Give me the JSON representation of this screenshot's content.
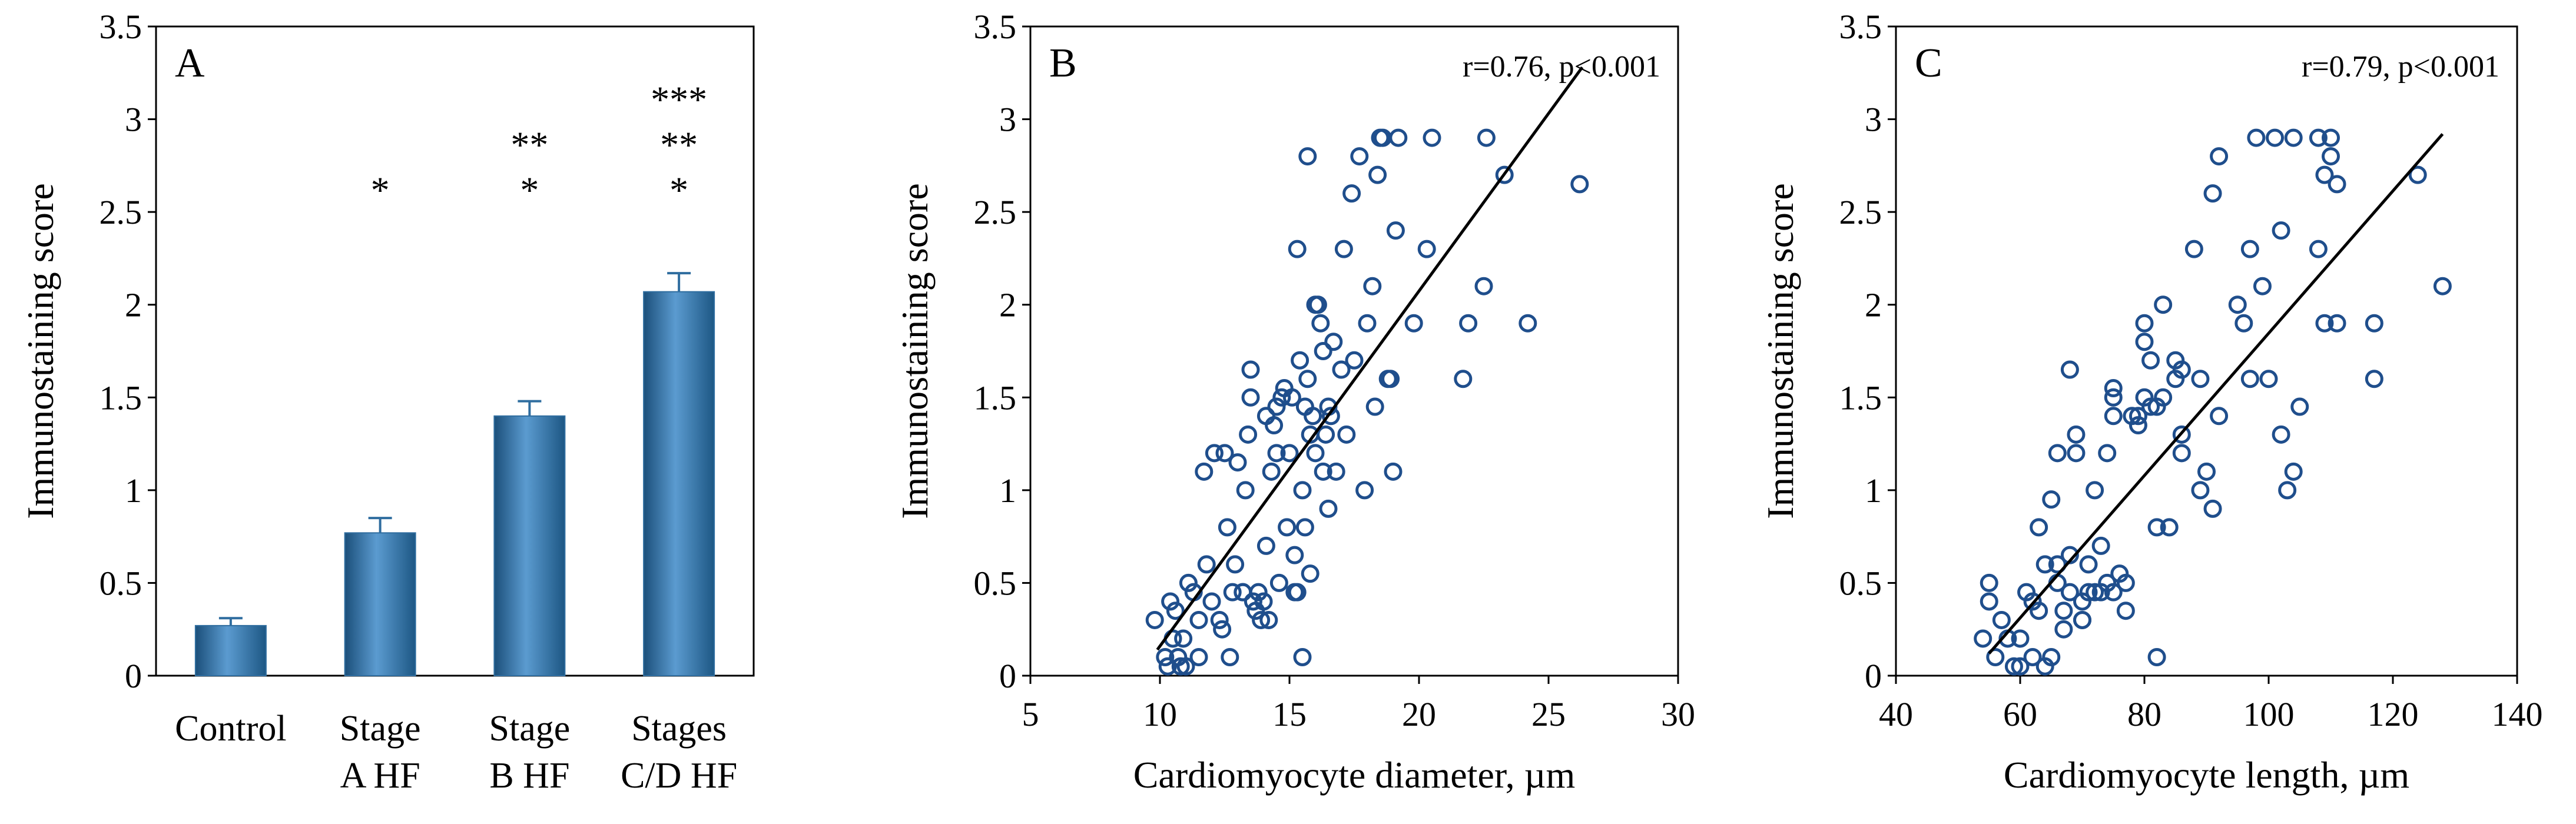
{
  "chart_data": [
    {
      "panel": "A",
      "type": "bar",
      "ylabel": "Immunostaining score",
      "ylim": [
        0,
        3.5
      ],
      "yticks": [
        0,
        0.5,
        1,
        1.5,
        2,
        2.5,
        3,
        3.5
      ],
      "ytick_labels": [
        "0",
        "0.5",
        "1",
        "1.5",
        "2",
        "2.5",
        "3",
        "3.5"
      ],
      "bar_color": "#2f6d9f",
      "categories": [
        {
          "line1": "Control",
          "line2": ""
        },
        {
          "line1": "Stage",
          "line2": "A HF"
        },
        {
          "line1": "Stage",
          "line2": "B HF"
        },
        {
          "line1": "Stages",
          "line2": "C/D HF"
        }
      ],
      "values": [
        0.27,
        0.77,
        1.4,
        2.07
      ],
      "errors": [
        0.04,
        0.08,
        0.08,
        0.1
      ],
      "significance": [
        [],
        [
          "*"
        ],
        [
          "**",
          "*"
        ],
        [
          "***",
          "**",
          "*"
        ]
      ]
    },
    {
      "panel": "B",
      "type": "scatter",
      "xlabel": "Cardiomyocyte diameter, µm",
      "ylabel": "Immunostaining score",
      "xlim": [
        5,
        30
      ],
      "ylim": [
        0,
        3.5
      ],
      "xticks": [
        5,
        10,
        15,
        20,
        25,
        30
      ],
      "xtick_labels": [
        "5",
        "10",
        "15",
        "20",
        "25",
        "30"
      ],
      "yticks": [
        0,
        0.5,
        1,
        1.5,
        2,
        2.5,
        3,
        3.5
      ],
      "ytick_labels": [
        "0",
        "0.5",
        "1",
        "1.5",
        "2",
        "2.5",
        "3",
        "3.5"
      ],
      "annotation": "r=0.76,  p<0.001",
      "marker_color": "#1f4e8c",
      "regression_line": {
        "x": [
          9.9,
          26.3
        ],
        "y": [
          0.14,
          3.28
        ]
      },
      "points": [
        [
          9.8,
          0.3
        ],
        [
          10.2,
          0.1
        ],
        [
          10.3,
          0.05
        ],
        [
          10.4,
          0.4
        ],
        [
          10.5,
          0.2
        ],
        [
          10.6,
          0.35
        ],
        [
          10.7,
          0.1
        ],
        [
          10.8,
          0.05
        ],
        [
          10.9,
          0.2
        ],
        [
          11.0,
          0.05
        ],
        [
          11.1,
          0.5
        ],
        [
          11.3,
          0.45
        ],
        [
          11.5,
          0.1
        ],
        [
          11.7,
          1.1
        ],
        [
          11.8,
          0.6
        ],
        [
          12.0,
          0.4
        ],
        [
          12.1,
          1.2
        ],
        [
          12.3,
          0.3
        ],
        [
          12.4,
          0.25
        ],
        [
          12.5,
          1.2
        ],
        [
          12.6,
          0.8
        ],
        [
          12.7,
          0.1
        ],
        [
          12.8,
          0.45
        ],
        [
          12.9,
          0.6
        ],
        [
          13.0,
          1.15
        ],
        [
          13.2,
          0.45
        ],
        [
          13.3,
          1.0
        ],
        [
          13.4,
          1.3
        ],
        [
          13.5,
          1.5
        ],
        [
          13.5,
          1.65
        ],
        [
          13.6,
          0.4
        ],
        [
          13.7,
          0.35
        ],
        [
          13.8,
          0.45
        ],
        [
          13.9,
          0.3
        ],
        [
          14.0,
          0.4
        ],
        [
          14.1,
          0.7
        ],
        [
          14.1,
          1.4
        ],
        [
          14.2,
          0.3
        ],
        [
          14.3,
          1.1
        ],
        [
          14.4,
          1.35
        ],
        [
          14.5,
          1.45
        ],
        [
          14.6,
          0.5
        ],
        [
          14.7,
          1.5
        ],
        [
          14.8,
          1.55
        ],
        [
          14.9,
          0.8
        ],
        [
          15.0,
          1.2
        ],
        [
          15.1,
          1.5
        ],
        [
          15.2,
          0.65
        ],
        [
          15.2,
          0.45
        ],
        [
          15.3,
          0.45
        ],
        [
          15.3,
          2.3
        ],
        [
          15.4,
          1.7
        ],
        [
          15.5,
          1.0
        ],
        [
          15.5,
          0.1
        ],
        [
          15.6,
          0.8
        ],
        [
          15.6,
          1.45
        ],
        [
          15.7,
          1.6
        ],
        [
          15.7,
          2.8
        ],
        [
          15.8,
          1.3
        ],
        [
          15.8,
          0.55
        ],
        [
          15.9,
          1.4
        ],
        [
          16.0,
          2.0
        ],
        [
          16.0,
          1.2
        ],
        [
          16.1,
          2.0
        ],
        [
          16.2,
          1.9
        ],
        [
          16.3,
          1.75
        ],
        [
          16.3,
          1.1
        ],
        [
          16.4,
          1.3
        ],
        [
          16.5,
          0.9
        ],
        [
          16.5,
          1.45
        ],
        [
          16.6,
          1.4
        ],
        [
          16.7,
          1.8
        ],
        [
          16.8,
          1.1
        ],
        [
          17.0,
          1.65
        ],
        [
          17.1,
          2.3
        ],
        [
          17.2,
          1.3
        ],
        [
          17.4,
          2.6
        ],
        [
          17.5,
          1.7
        ],
        [
          17.7,
          2.8
        ],
        [
          17.9,
          1.0
        ],
        [
          18.0,
          1.9
        ],
        [
          18.2,
          2.1
        ],
        [
          18.3,
          1.45
        ],
        [
          18.4,
          2.7
        ],
        [
          18.5,
          2.9
        ],
        [
          18.6,
          2.9
        ],
        [
          18.8,
          1.6
        ],
        [
          18.9,
          1.6
        ],
        [
          19.0,
          1.1
        ],
        [
          19.1,
          2.4
        ],
        [
          19.2,
          2.9
        ],
        [
          19.8,
          1.9
        ],
        [
          20.3,
          2.3
        ],
        [
          20.5,
          2.9
        ],
        [
          21.7,
          1.6
        ],
        [
          21.9,
          1.9
        ],
        [
          22.5,
          2.1
        ],
        [
          22.6,
          2.9
        ],
        [
          23.3,
          2.7
        ],
        [
          24.2,
          1.9
        ],
        [
          26.2,
          2.65
        ],
        [
          13.2,
          0.45
        ],
        [
          14.5,
          1.2
        ],
        [
          11.5,
          0.3
        ]
      ]
    },
    {
      "panel": "C",
      "type": "scatter",
      "xlabel": "Cardiomyocyte length, µm",
      "ylabel": "Immunostaining score",
      "xlim": [
        40,
        140
      ],
      "ylim": [
        0,
        3.5
      ],
      "xticks": [
        40,
        60,
        80,
        100,
        120,
        140
      ],
      "xtick_labels": [
        "40",
        "60",
        "80",
        "100",
        "120",
        "140"
      ],
      "yticks": [
        0,
        0.5,
        1,
        1.5,
        2,
        2.5,
        3,
        3.5
      ],
      "ytick_labels": [
        "0",
        "0.5",
        "1",
        "1.5",
        "2",
        "2.5",
        "3",
        "3.5"
      ],
      "annotation": "r=0.79,  p<0.001",
      "marker_color": "#1f4e8c",
      "regression_line": {
        "x": [
          55,
          128
        ],
        "y": [
          0.12,
          2.92
        ]
      },
      "points": [
        [
          54,
          0.2
        ],
        [
          55,
          0.4
        ],
        [
          55,
          0.5
        ],
        [
          56,
          0.1
        ],
        [
          57,
          0.3
        ],
        [
          58,
          0.2
        ],
        [
          59,
          0.05
        ],
        [
          60,
          0.05
        ],
        [
          60,
          0.2
        ],
        [
          61,
          0.45
        ],
        [
          62,
          0.4
        ],
        [
          62,
          0.1
        ],
        [
          63,
          0.8
        ],
        [
          63,
          0.35
        ],
        [
          64,
          0.6
        ],
        [
          64,
          0.05
        ],
        [
          65,
          0.95
        ],
        [
          65,
          0.1
        ],
        [
          66,
          0.5
        ],
        [
          66,
          0.6
        ],
        [
          66,
          1.2
        ],
        [
          67,
          0.25
        ],
        [
          67,
          0.35
        ],
        [
          68,
          0.65
        ],
        [
          68,
          0.45
        ],
        [
          68,
          1.65
        ],
        [
          69,
          1.2
        ],
        [
          69,
          1.3
        ],
        [
          70,
          0.4
        ],
        [
          70,
          0.3
        ],
        [
          70,
          0.3
        ],
        [
          71,
          0.45
        ],
        [
          71,
          0.6
        ],
        [
          72,
          1.0
        ],
        [
          72,
          0.45
        ],
        [
          73,
          0.7
        ],
        [
          73,
          0.45
        ],
        [
          74,
          1.2
        ],
        [
          74,
          0.5
        ],
        [
          75,
          1.5
        ],
        [
          75,
          1.55
        ],
        [
          75,
          1.4
        ],
        [
          75,
          0.45
        ],
        [
          76,
          0.55
        ],
        [
          77,
          0.5
        ],
        [
          77,
          0.35
        ],
        [
          78,
          1.4
        ],
        [
          79,
          1.4
        ],
        [
          79,
          1.35
        ],
        [
          80,
          1.5
        ],
        [
          80,
          1.8
        ],
        [
          80,
          1.9
        ],
        [
          81,
          1.7
        ],
        [
          81,
          1.45
        ],
        [
          82,
          1.45
        ],
        [
          82,
          0.8
        ],
        [
          82,
          0.1
        ],
        [
          83,
          2.0
        ],
        [
          83,
          1.5
        ],
        [
          84,
          0.8
        ],
        [
          85,
          1.7
        ],
        [
          85,
          1.6
        ],
        [
          86,
          1.65
        ],
        [
          86,
          1.3
        ],
        [
          86,
          1.2
        ],
        [
          88,
          2.3
        ],
        [
          89,
          1.6
        ],
        [
          89,
          1.0
        ],
        [
          90,
          1.1
        ],
        [
          91,
          0.9
        ],
        [
          91,
          2.6
        ],
        [
          92,
          1.4
        ],
        [
          92,
          2.8
        ],
        [
          95,
          2.0
        ],
        [
          96,
          1.9
        ],
        [
          97,
          1.6
        ],
        [
          97,
          2.3
        ],
        [
          98,
          2.9
        ],
        [
          99,
          2.1
        ],
        [
          100,
          1.6
        ],
        [
          101,
          2.9
        ],
        [
          102,
          2.4
        ],
        [
          102,
          1.3
        ],
        [
          103,
          1.0
        ],
        [
          104,
          2.9
        ],
        [
          104,
          1.1
        ],
        [
          105,
          1.45
        ],
        [
          108,
          2.3
        ],
        [
          108,
          2.9
        ],
        [
          109,
          1.9
        ],
        [
          109,
          2.7
        ],
        [
          110,
          2.9
        ],
        [
          110,
          2.8
        ],
        [
          111,
          1.9
        ],
        [
          111,
          2.65
        ],
        [
          117,
          1.6
        ],
        [
          117,
          1.9
        ],
        [
          124,
          2.7
        ],
        [
          128,
          2.1
        ]
      ]
    }
  ]
}
